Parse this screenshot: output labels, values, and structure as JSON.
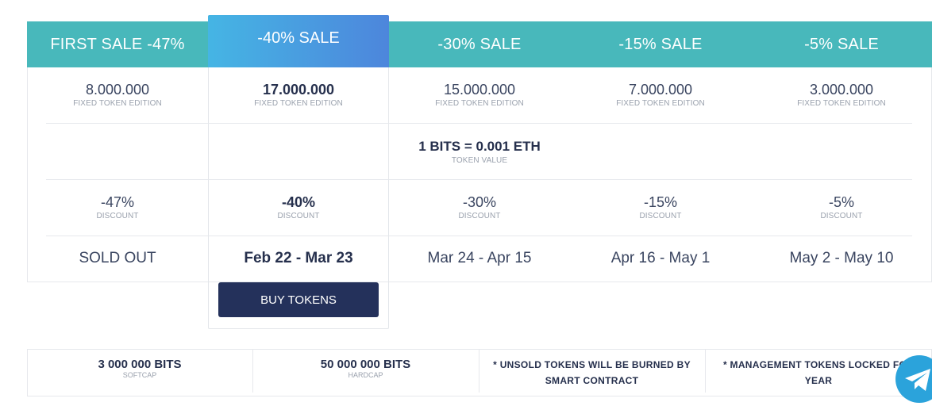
{
  "columns": [
    {
      "header": "FIRST SALE -47%",
      "tokens": "8.000.000",
      "tokens_label": "FIXED TOKEN EDITION",
      "discount": "-47%",
      "discount_label": "DISCOUNT",
      "dates": "SOLD OUT"
    },
    {
      "header": "-40% SALE",
      "tokens": "17.000.000",
      "tokens_label": "FIXED TOKEN EDITION",
      "discount": "-40%",
      "discount_label": "DISCOUNT",
      "dates": "Feb 22 - Mar 23"
    },
    {
      "header": "-30% SALE",
      "tokens": "15.000.000",
      "tokens_label": "FIXED TOKEN EDITION",
      "discount": "-30%",
      "discount_label": "DISCOUNT",
      "dates": "Mar 24 - Apr 15"
    },
    {
      "header": "-15% SALE",
      "tokens": "7.000.000",
      "tokens_label": "FIXED TOKEN EDITION",
      "discount": "-15%",
      "discount_label": "DISCOUNT",
      "dates": "Apr 16 - May 1"
    },
    {
      "header": "-5% SALE",
      "tokens": "3.000.000",
      "tokens_label": "FIXED TOKEN EDITION",
      "discount": "-5%",
      "discount_label": "DISCOUNT",
      "dates": "May 2 - May 10"
    }
  ],
  "token_value": {
    "text": "1 BITS = 0.001 ETH",
    "label": "TOKEN VALUE"
  },
  "buy_button": "BUY TOKENS",
  "summary": [
    {
      "value": "3 000 000 BITS",
      "label": "SOFTCAP"
    },
    {
      "value": "50 000 000 BITS",
      "label": "HARDCAP"
    },
    {
      "note_line1": "* UNSOLD TOKENS WILL BE BURNED BY",
      "note_line2": "SMART CONTRACT"
    },
    {
      "note_line1": "* MANAGEMENT TOKENS LOCKED FOR",
      "note_line2": "YEAR"
    }
  ],
  "colors": {
    "header": "#48b8bb",
    "active_gradient_start": "#45b5e4",
    "active_gradient_end": "#4d86dc",
    "button": "#24315b",
    "telegram": "#2ba3db"
  },
  "icons": {
    "telegram": "telegram-icon"
  }
}
